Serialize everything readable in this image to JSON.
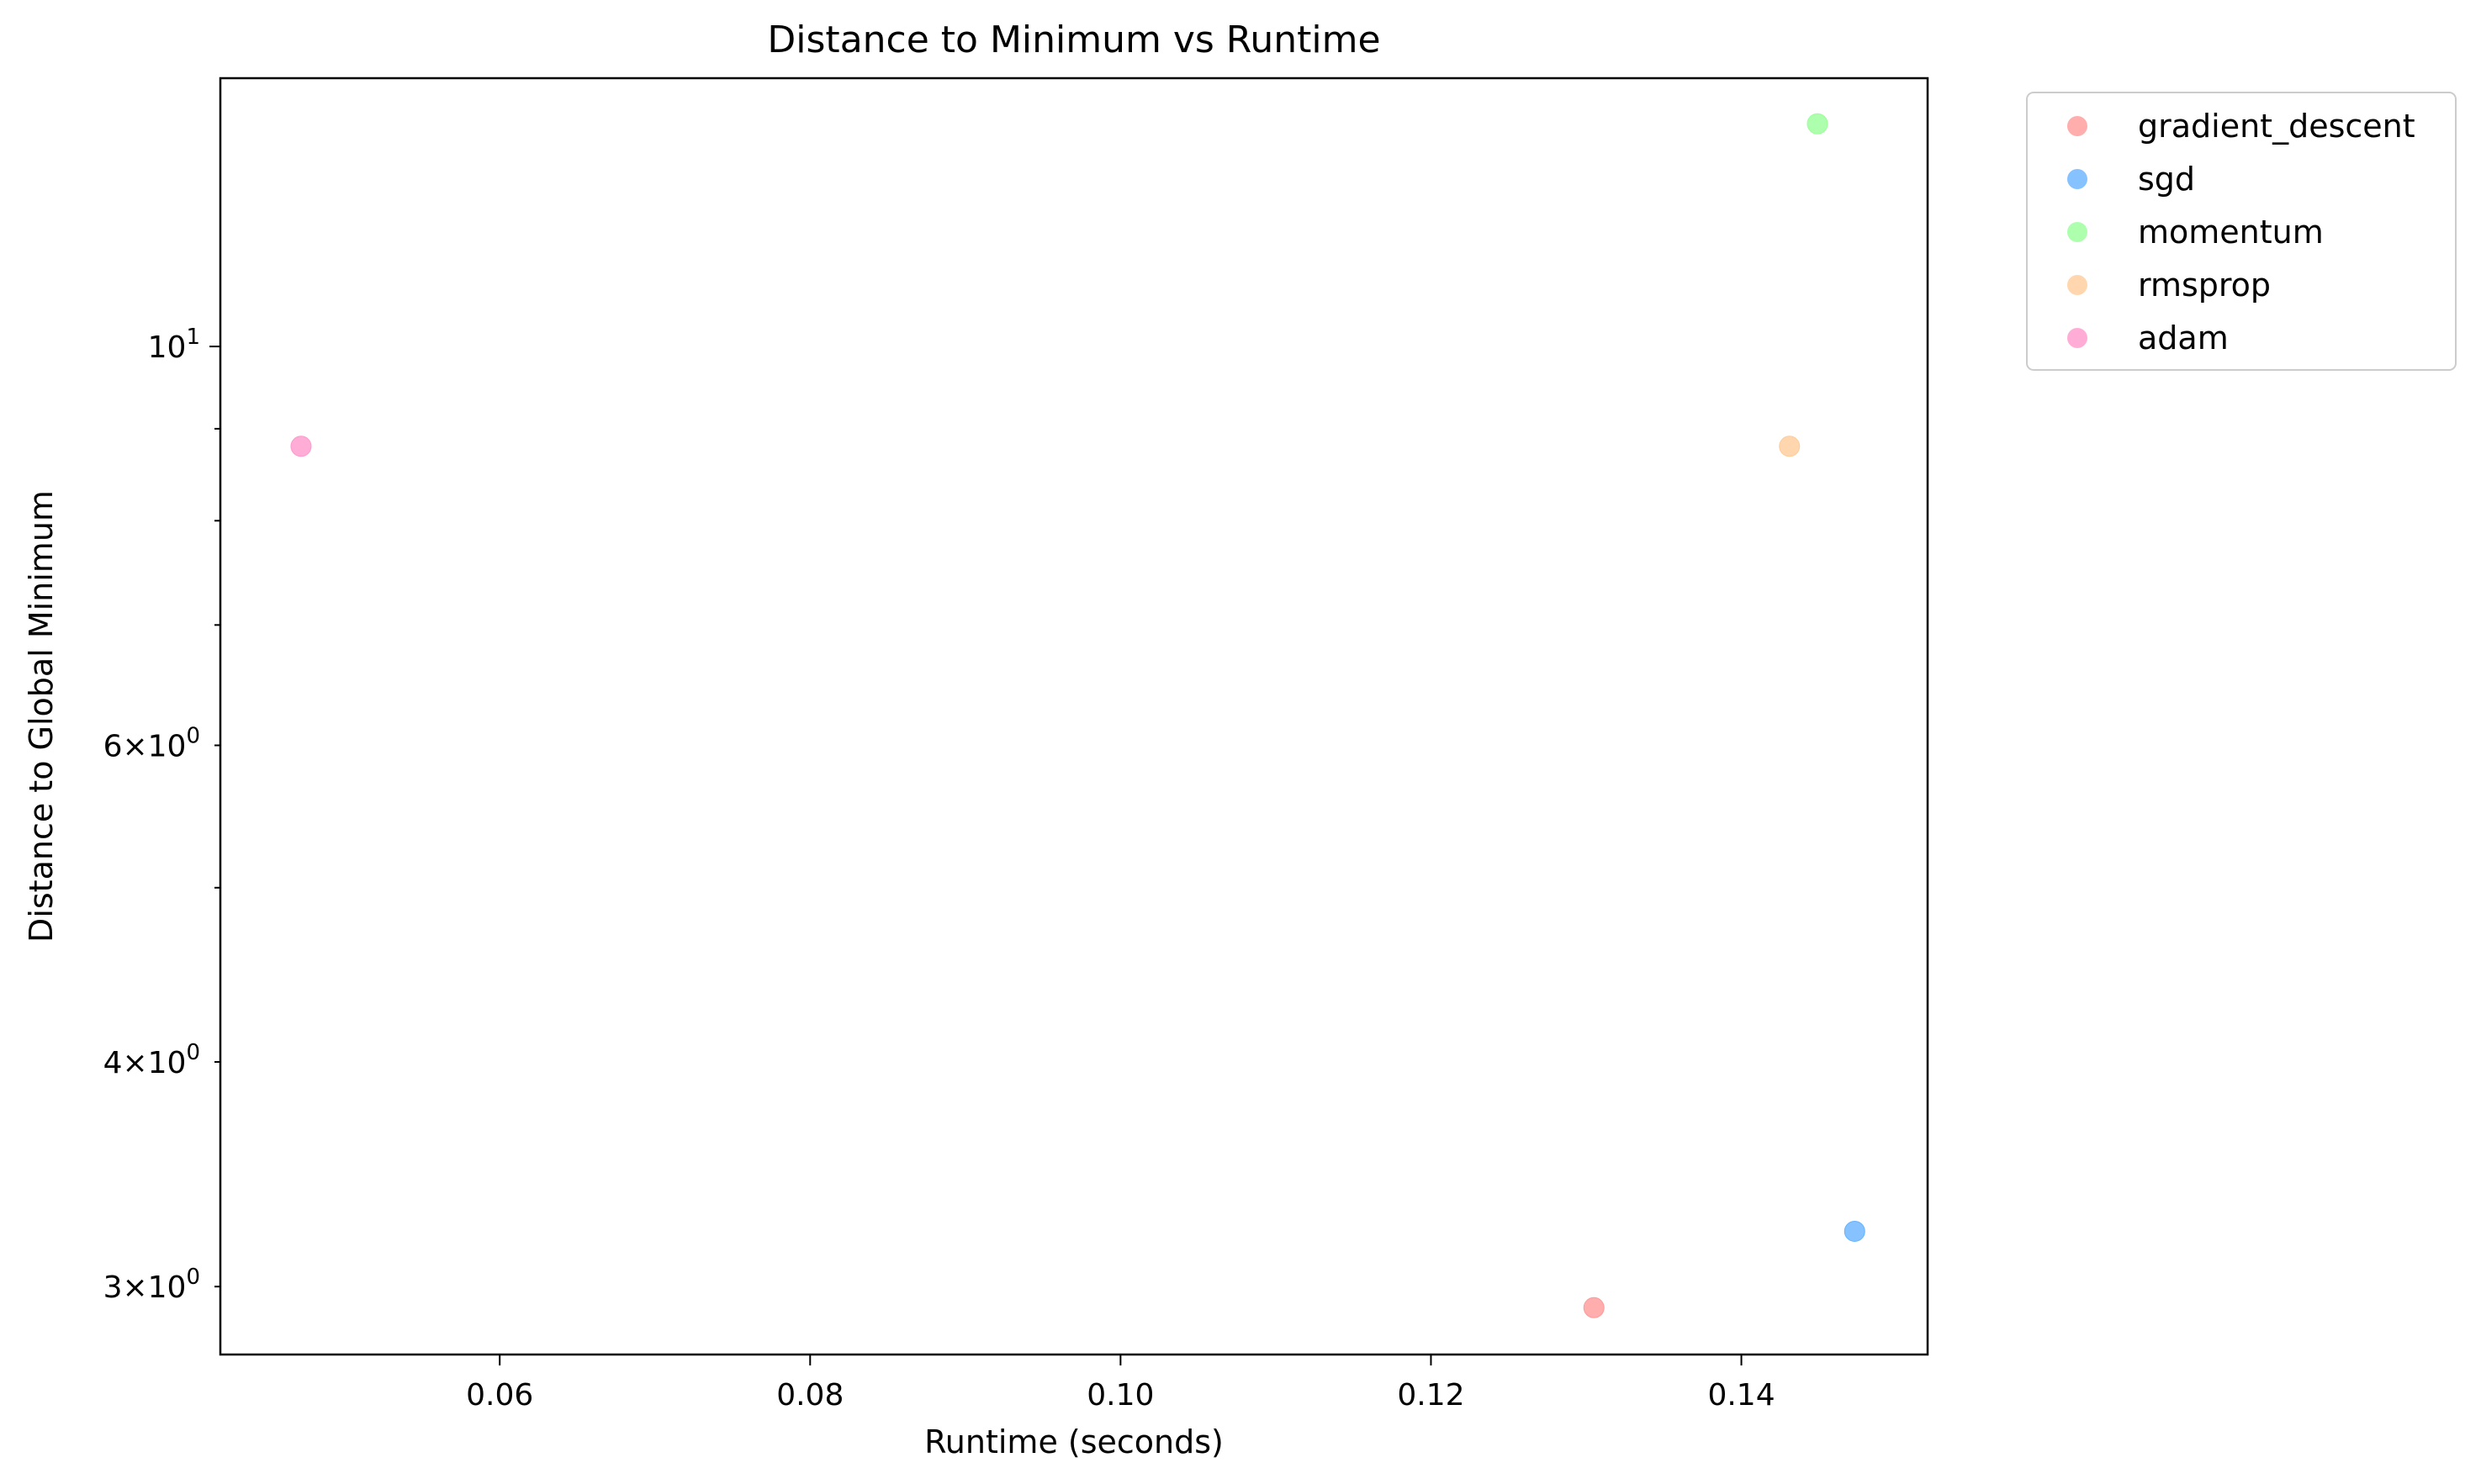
{
  "chart_data": {
    "type": "scatter",
    "title": "Distance to Minimum vs Runtime",
    "xlabel": "Runtime (seconds)",
    "ylabel": "Distance to Global Minimum",
    "xlim": [
      0.042,
      0.152
    ],
    "ylim": [
      2.75,
      14.1
    ],
    "yscale": "log",
    "grid": false,
    "legend_position": "outside-top-right",
    "x_ticks": [
      0.06,
      0.08,
      0.1,
      0.12,
      0.14
    ],
    "x_tick_labels": [
      "0.06",
      "0.08",
      "0.10",
      "0.12",
      "0.14"
    ],
    "y_major_ticks": [
      {
        "value": 10,
        "base": "10",
        "exp": "1"
      }
    ],
    "y_minor_ticks": [
      {
        "value": 3,
        "base": "3×10",
        "exp": "0"
      },
      {
        "value": 4,
        "base": "4×10",
        "exp": "0"
      },
      {
        "value": 5,
        "base": "",
        "exp": ""
      },
      {
        "value": 6,
        "base": "6×10",
        "exp": "0"
      },
      {
        "value": 7,
        "base": "",
        "exp": ""
      },
      {
        "value": 8,
        "base": "",
        "exp": ""
      },
      {
        "value": 9,
        "base": "",
        "exp": ""
      }
    ],
    "series": [
      {
        "name": "gradient_descent",
        "color": "#ff9999",
        "points": [
          {
            "x": 0.1305,
            "y": 2.92
          }
        ]
      },
      {
        "name": "sgd",
        "color": "#66b3ff",
        "points": [
          {
            "x": 0.1473,
            "y": 3.22
          }
        ]
      },
      {
        "name": "momentum",
        "color": "#99ff99",
        "points": [
          {
            "x": 0.1449,
            "y": 13.3
          }
        ]
      },
      {
        "name": "rmsprop",
        "color": "#ffcc99",
        "points": [
          {
            "x": 0.1431,
            "y": 8.8
          }
        ]
      },
      {
        "name": "adam",
        "color": "#ff99cc",
        "points": [
          {
            "x": 0.0472,
            "y": 8.8
          }
        ]
      }
    ]
  }
}
